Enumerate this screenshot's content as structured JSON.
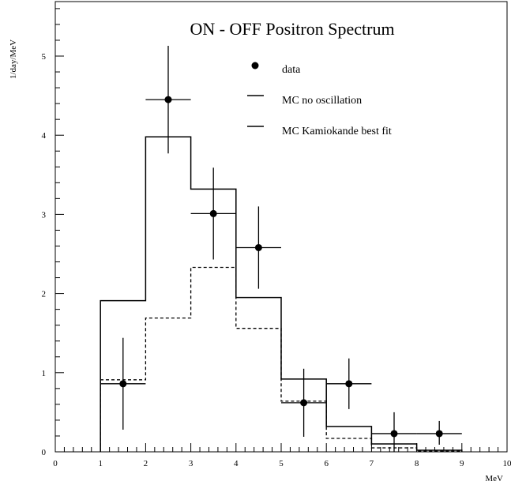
{
  "chart_data": {
    "type": "line",
    "title": "ON - OFF Positron Spectrum",
    "ylabel": "1/day/MeV",
    "xlabel": "MeV",
    "xlim": [
      0,
      10
    ],
    "ylim": [
      0,
      5.7
    ],
    "x_ticks": [
      0,
      1,
      2,
      3,
      4,
      5,
      6,
      7,
      8,
      9,
      10
    ],
    "y_ticks": [
      0,
      1,
      2,
      3,
      4,
      5
    ],
    "grid": false,
    "legend_position": "top-right",
    "legend": [
      {
        "label": "data",
        "marker": "point"
      },
      {
        "label": "MC no oscillation",
        "marker": "line"
      },
      {
        "label": "MC Kamiokande best fit",
        "marker": "line"
      }
    ],
    "series": [
      {
        "name": "data",
        "kind": "points",
        "x": [
          1.5,
          2.5,
          3.5,
          4.5,
          5.5,
          6.5,
          7.5,
          8.5
        ],
        "y": [
          0.86,
          4.45,
          3.01,
          2.58,
          0.62,
          0.86,
          0.23,
          0.23
        ],
        "yerr_low": [
          0.58,
          0.68,
          0.58,
          0.52,
          0.43,
          0.32,
          0.23,
          0.14
        ],
        "yerr_high": [
          0.58,
          0.68,
          0.58,
          0.52,
          0.43,
          0.32,
          0.27,
          0.16
        ],
        "xerr": 0.5
      },
      {
        "name": "MC no oscillation",
        "kind": "histogram-solid",
        "bin_edges": [
          1,
          2,
          3,
          4,
          5,
          6,
          7,
          8,
          9
        ],
        "values": [
          1.91,
          3.98,
          3.32,
          1.95,
          0.92,
          0.32,
          0.1,
          0.02
        ]
      },
      {
        "name": "MC Kamiokande best fit",
        "kind": "histogram-dashed",
        "bin_edges": [
          1,
          2,
          3,
          4,
          5,
          6,
          7,
          8,
          9
        ],
        "values": [
          0.91,
          1.69,
          2.33,
          1.56,
          0.64,
          0.17,
          0.05,
          0.01
        ]
      }
    ]
  }
}
